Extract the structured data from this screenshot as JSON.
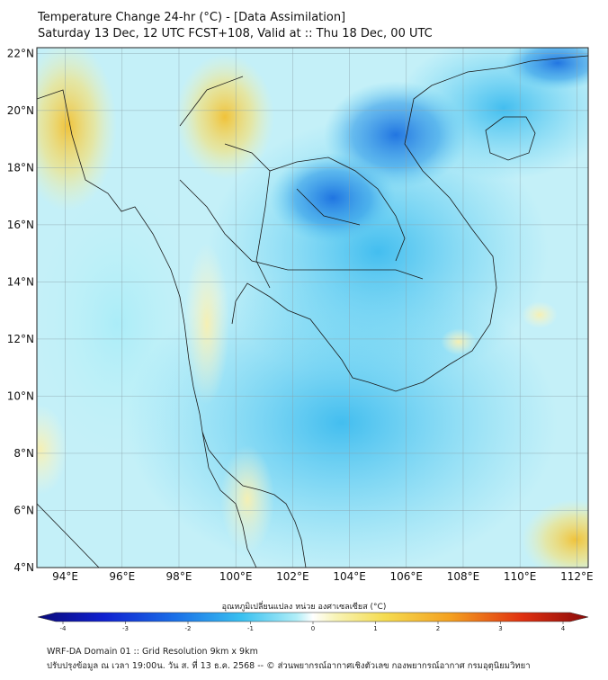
{
  "header": {
    "title_line1": "Temperature Change 24-hr (°C) - [Data Assimilation]",
    "title_line2": "Saturday 13 Dec, 12 UTC FCST+108, Valid at :: Thu 18 Dec, 00 UTC"
  },
  "map": {
    "lat_labels": [
      "22°N",
      "20°N",
      "18°N",
      "16°N",
      "14°N",
      "12°N",
      "10°N",
      "8°N",
      "6°N",
      "4°N"
    ],
    "lon_labels": [
      "94°E",
      "96°E",
      "98°E",
      "100°E",
      "102°E",
      "104°E",
      "106°E",
      "108°E",
      "110°E",
      "112°E"
    ],
    "lat_values": [
      22,
      20,
      18,
      16,
      14,
      12,
      10,
      8,
      6,
      4
    ],
    "lon_values": [
      94,
      96,
      98,
      100,
      102,
      104,
      106,
      108,
      110,
      112
    ],
    "lat_range": [
      4,
      22.2
    ],
    "lon_range": [
      93,
      112.4
    ]
  },
  "colorbar": {
    "label": "อุณหภูมิเปลี่ยนแปลง หน่วย องศาเซลเซียส (°C)",
    "tick_labels": [
      "-4",
      "-3",
      "-2",
      "-1",
      "0",
      "1",
      "2",
      "3",
      "4"
    ],
    "tick_values": [
      -4,
      -3,
      -2,
      -1,
      0,
      1,
      2,
      3,
      4
    ],
    "range": [
      -4,
      4
    ]
  },
  "footer": {
    "line1": "WRF-DA Domain 01 :: Grid Resolution 9km x 9km",
    "line2": "ปรับปรุงข้อมูล ณ เวลา 19:00น. วัน ส. ที่ 13 ธ.ค. 2568 -- © ส่วนพยากรณ์อากาศเชิงตัวเลข กองพยากรณ์อากาศ กรมอุตุนิยมวิทยา"
  }
}
